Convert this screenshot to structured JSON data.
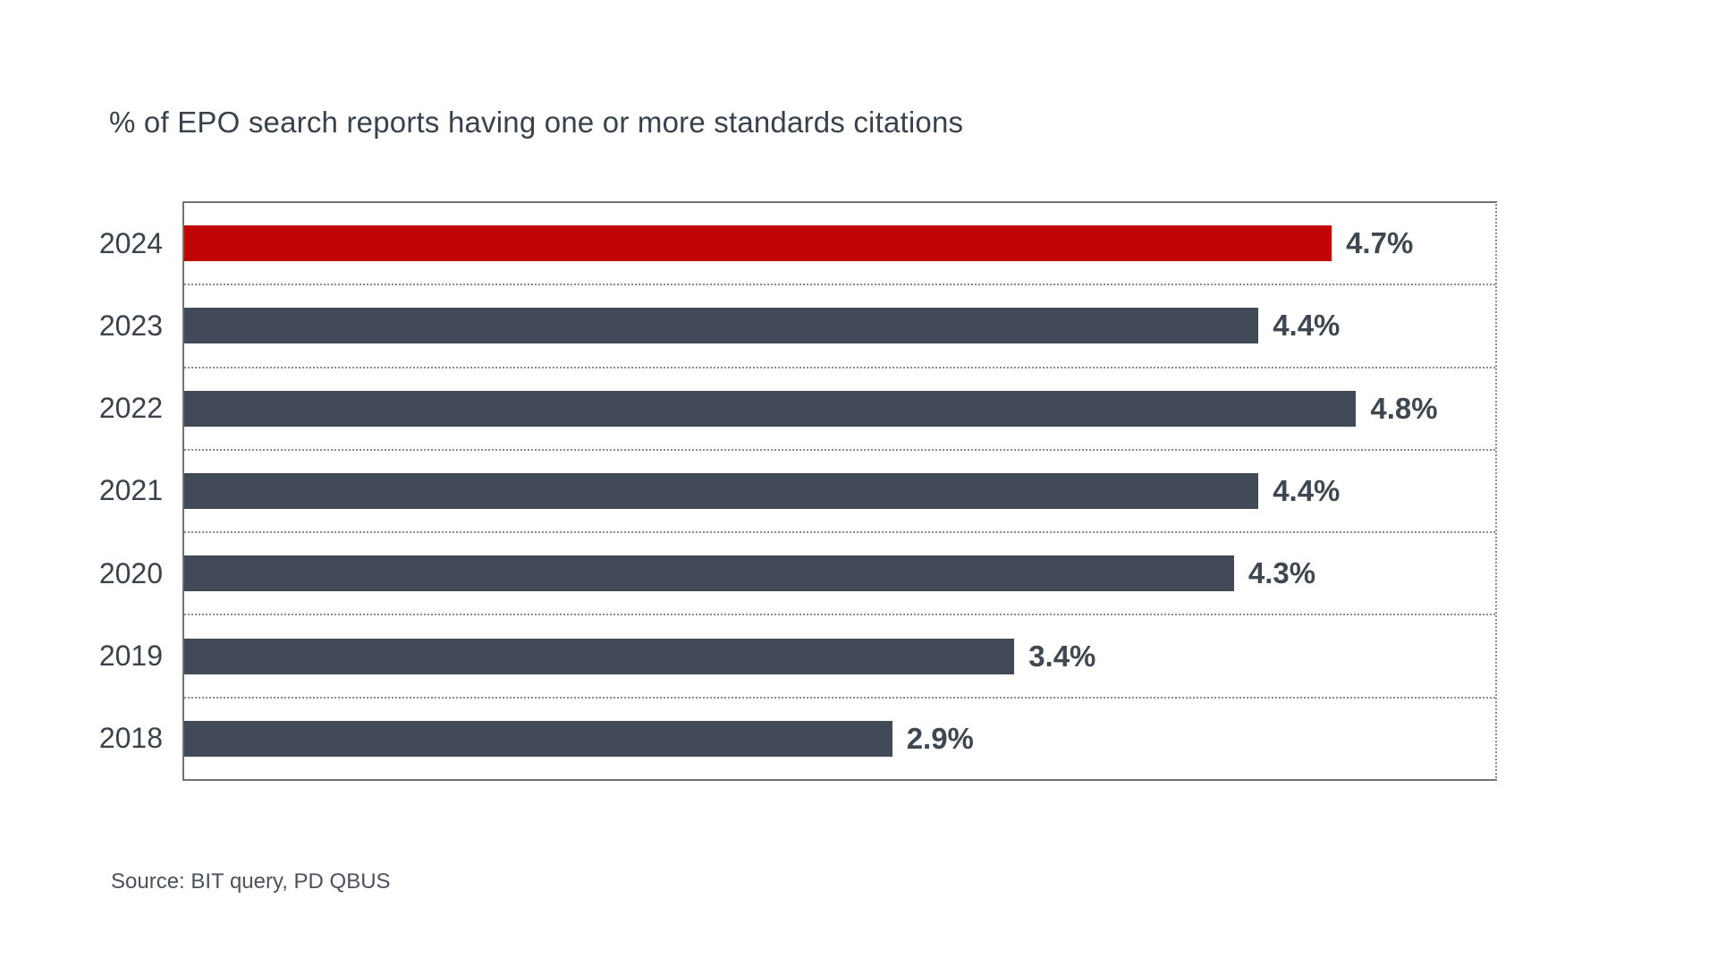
{
  "title": "% of EPO search reports having one or more standards citations",
  "source_note": "Source: BIT query, PD QBUS",
  "colors": {
    "highlight_bar": "#c00404",
    "default_bar": "#424a57",
    "title_text": "#38424c",
    "value_text": "#3f4751",
    "solid_border": "#6f7377",
    "dotted_border": "#8a8d91"
  },
  "chart_data": {
    "type": "bar",
    "orientation": "horizontal",
    "title": "% of EPO search reports having one or more standards citations",
    "categories": [
      "2024",
      "2023",
      "2022",
      "2021",
      "2020",
      "2019",
      "2018"
    ],
    "values": [
      4.7,
      4.4,
      4.8,
      4.4,
      4.3,
      3.4,
      2.9
    ],
    "value_labels": [
      "4.7%",
      "4.4%",
      "4.8%",
      "4.4%",
      "4.3%",
      "3.4%",
      "2.9%"
    ],
    "highlight_category": "2024",
    "xlabel": "",
    "ylabel": "",
    "xlim": [
      0,
      5.37
    ],
    "legend": "none",
    "grid": "dotted horizontal row separators, dotted right frame edge",
    "bar_label_position": "outside-end"
  }
}
